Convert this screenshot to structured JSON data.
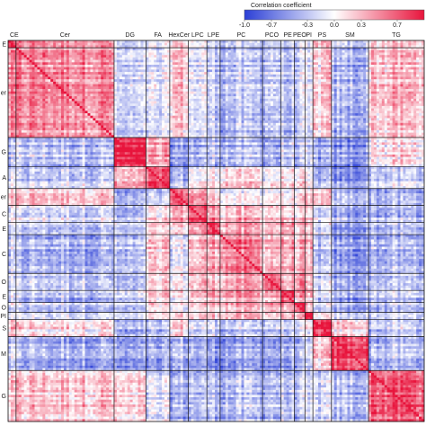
{
  "chart_data": {
    "type": "heatmap",
    "colorbar": {
      "title": "Correlation coefficient",
      "ticks": [
        "-1.0",
        "-0.7",
        "-0.3",
        "0.0",
        "0.3",
        "0.7"
      ],
      "range": [
        -1,
        1
      ],
      "colors": {
        "low": "#2b3fd6",
        "mid": "#ffffff",
        "high": "#e8143c"
      }
    },
    "top_labels": [
      "CE",
      "Cer",
      "DG",
      "FA",
      "HexCer",
      "LPC",
      "LPE",
      "PC",
      "PCO",
      "PE",
      "PEO",
      "PI",
      "PS",
      "SM",
      "TG"
    ],
    "left_labels": [
      "E",
      "er",
      "G",
      "A",
      "er",
      "C",
      "E",
      "C",
      "O",
      "E",
      "O",
      "PI",
      "S",
      "M",
      "G"
    ],
    "classes": [
      {
        "name": "CE",
        "count": 3
      },
      {
        "name": "Cer",
        "count": 37
      },
      {
        "name": "DG",
        "count": 12
      },
      {
        "name": "FA",
        "count": 9
      },
      {
        "name": "HexCer",
        "count": 7
      },
      {
        "name": "LPC",
        "count": 7
      },
      {
        "name": "LPE",
        "count": 5
      },
      {
        "name": "PC",
        "count": 16
      },
      {
        "name": "PCO",
        "count": 7
      },
      {
        "name": "PE",
        "count": 5
      },
      {
        "name": "PEO",
        "count": 4
      },
      {
        "name": "PI",
        "count": 3
      },
      {
        "name": "PS",
        "count": 7
      },
      {
        "name": "SM",
        "count": 14
      },
      {
        "name": "TG",
        "count": 21
      }
    ],
    "block_mean_correlation": [
      [
        0.7,
        0.45,
        -0.35,
        -0.15,
        0.15,
        -0.1,
        -0.2,
        -0.3,
        -0.25,
        -0.3,
        -0.25,
        -0.2,
        0.2,
        -0.3,
        0.15
      ],
      [
        0.45,
        0.5,
        -0.3,
        -0.2,
        0.25,
        -0.15,
        -0.25,
        -0.35,
        -0.25,
        -0.35,
        -0.25,
        -0.25,
        0.15,
        -0.4,
        0.25
      ],
      [
        -0.35,
        -0.3,
        0.9,
        0.3,
        -0.5,
        -0.4,
        -0.3,
        -0.35,
        -0.4,
        -0.3,
        -0.35,
        -0.3,
        -0.45,
        -0.55,
        0.1
      ],
      [
        -0.15,
        -0.2,
        0.3,
        0.75,
        -0.3,
        0.05,
        0.1,
        0.2,
        0.1,
        0.15,
        0.1,
        -0.05,
        -0.35,
        -0.5,
        -0.2
      ],
      [
        0.15,
        0.25,
        -0.5,
        -0.3,
        0.7,
        0.4,
        0.2,
        -0.05,
        0.05,
        0.0,
        0.05,
        0.1,
        0.2,
        -0.35,
        -0.4
      ],
      [
        -0.1,
        -0.15,
        -0.4,
        0.05,
        0.4,
        0.75,
        0.45,
        0.3,
        0.25,
        0.2,
        0.15,
        0.1,
        -0.2,
        -0.4,
        -0.35
      ],
      [
        -0.2,
        -0.25,
        -0.3,
        0.1,
        0.2,
        0.45,
        0.8,
        0.4,
        0.3,
        0.4,
        0.25,
        0.15,
        -0.15,
        -0.5,
        -0.3
      ],
      [
        -0.3,
        -0.35,
        -0.35,
        0.2,
        -0.05,
        0.3,
        0.4,
        0.55,
        0.35,
        0.35,
        0.3,
        0.2,
        -0.3,
        -0.5,
        -0.35
      ],
      [
        -0.25,
        -0.25,
        -0.4,
        0.1,
        0.05,
        0.25,
        0.3,
        0.35,
        0.7,
        0.3,
        0.45,
        0.15,
        -0.2,
        -0.45,
        -0.3
      ],
      [
        -0.3,
        -0.35,
        -0.3,
        0.15,
        0.0,
        0.2,
        0.4,
        0.35,
        0.3,
        0.75,
        0.35,
        0.15,
        -0.25,
        -0.45,
        -0.3
      ],
      [
        -0.25,
        -0.25,
        -0.35,
        0.1,
        0.05,
        0.15,
        0.25,
        0.3,
        0.45,
        0.35,
        0.8,
        0.15,
        -0.2,
        -0.4,
        -0.3
      ],
      [
        -0.2,
        -0.25,
        -0.3,
        -0.05,
        0.1,
        0.1,
        0.15,
        0.2,
        0.15,
        0.15,
        0.15,
        0.85,
        -0.1,
        -0.3,
        -0.3
      ],
      [
        0.2,
        0.15,
        -0.45,
        -0.35,
        0.2,
        -0.2,
        -0.15,
        -0.3,
        -0.2,
        -0.25,
        -0.2,
        -0.1,
        0.85,
        0.2,
        -0.25
      ],
      [
        -0.3,
        -0.4,
        -0.55,
        -0.5,
        -0.35,
        -0.4,
        -0.5,
        -0.5,
        -0.45,
        -0.45,
        -0.4,
        -0.3,
        0.2,
        0.8,
        -0.35
      ],
      [
        0.15,
        0.25,
        0.1,
        -0.2,
        -0.4,
        -0.35,
        -0.3,
        -0.35,
        -0.3,
        -0.3,
        -0.3,
        -0.3,
        -0.25,
        -0.35,
        0.7
      ]
    ]
  }
}
